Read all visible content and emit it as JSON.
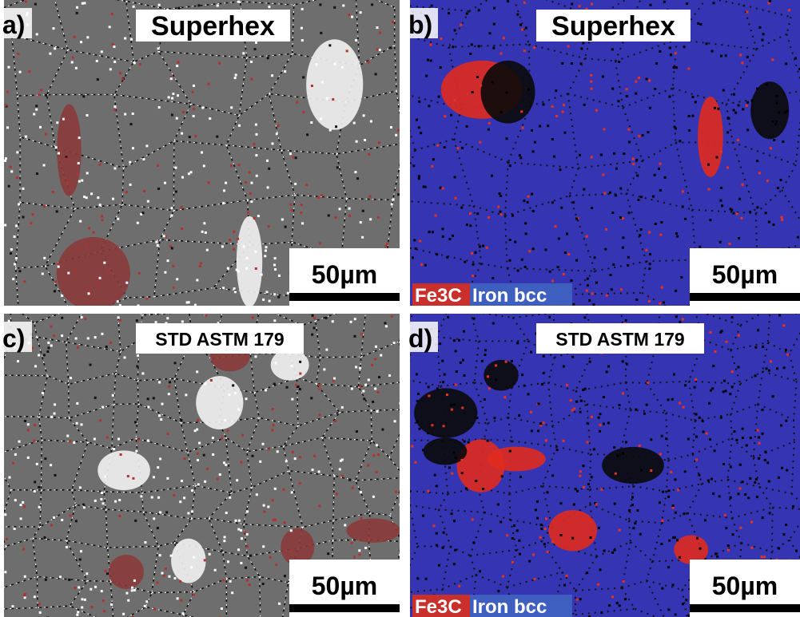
{
  "panels": [
    {
      "label": "a)",
      "title": "Superhex",
      "scale": "50µm"
    },
    {
      "label": "b)",
      "title": "Superhex",
      "scale": "50µm",
      "legend": [
        "Fe3C",
        "Iron bcc"
      ]
    },
    {
      "label": "c)",
      "title": "STD ASTM 179",
      "scale": "50µm"
    },
    {
      "label": "d)",
      "title": "STD ASTM 179",
      "scale": "50µm",
      "legend": [
        "Fe3C",
        "Iron bcc"
      ]
    }
  ]
}
